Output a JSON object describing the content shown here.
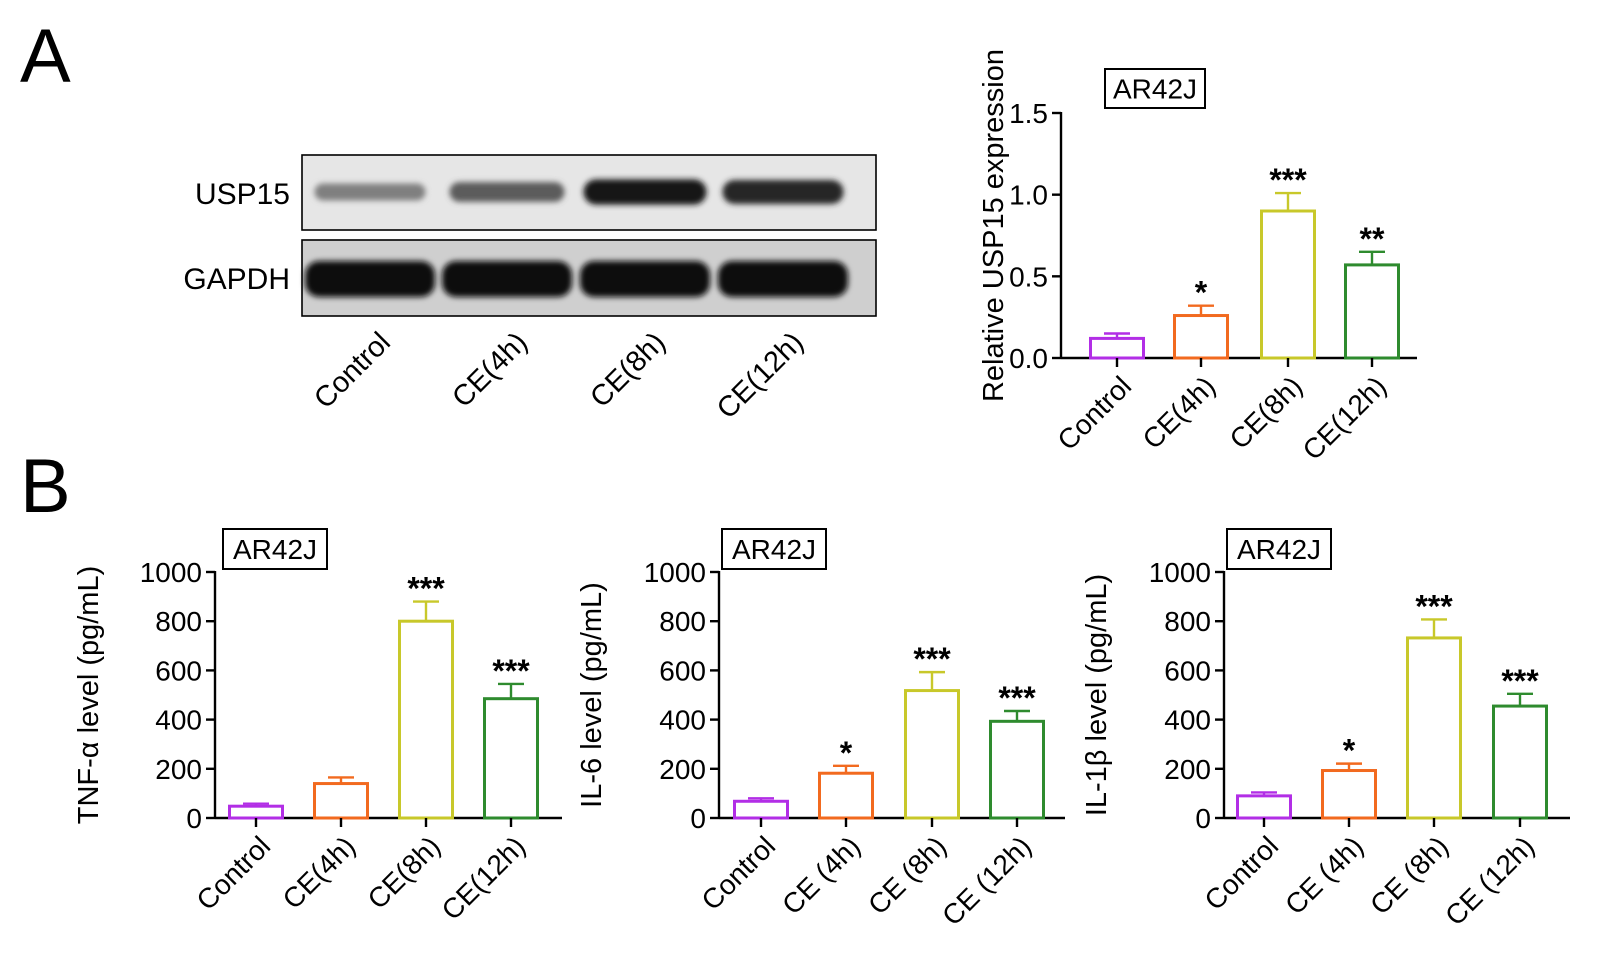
{
  "panels": {
    "a_label": "A",
    "b_label": "B"
  },
  "blot": {
    "proteins": [
      "USP15",
      "GAPDH"
    ],
    "lanes": [
      "Control",
      "CE(4h)",
      "CE(8h)",
      "CE(12h)"
    ],
    "usp15_intensity": [
      0.35,
      0.55,
      0.95,
      0.85
    ],
    "gapdh_intensity": [
      1.0,
      1.0,
      1.0,
      1.0
    ]
  },
  "chart_data": [
    {
      "id": "usp15",
      "type": "bar",
      "cell_label": "AR42J",
      "ylabel": "Relative USP15 expression",
      "categories": [
        "Control",
        "CE(4h)",
        "CE(8h)",
        "CE(12h)"
      ],
      "values": [
        0.12,
        0.26,
        0.9,
        0.57
      ],
      "errors": [
        0.03,
        0.06,
        0.11,
        0.08
      ],
      "significance": [
        "",
        "*",
        "***",
        "**"
      ],
      "ylim": [
        0,
        1.5
      ],
      "yticks": [
        "0.0",
        "0.5",
        "1.0",
        "1.5"
      ],
      "ytick_values": [
        0,
        0.5,
        1.0,
        1.5
      ],
      "bar_colors": [
        "#b22ee6",
        "#f26a1f",
        "#c8c82a",
        "#2e8b2e"
      ]
    },
    {
      "id": "tnf",
      "type": "bar",
      "cell_label": "AR42J",
      "ylabel": "TNF-α level (pg/mL)",
      "categories": [
        "Control",
        "CE(4h)",
        "CE(8h)",
        "CE(12h)"
      ],
      "values": [
        48,
        140,
        800,
        485
      ],
      "errors": [
        10,
        25,
        80,
        60
      ],
      "significance": [
        "",
        "",
        "***",
        "***"
      ],
      "ylim": [
        0,
        1000
      ],
      "yticks": [
        "0",
        "200",
        "400",
        "600",
        "800",
        "1000"
      ],
      "ytick_values": [
        0,
        200,
        400,
        600,
        800,
        1000
      ],
      "bar_colors": [
        "#b22ee6",
        "#f26a1f",
        "#c8c82a",
        "#2e8b2e"
      ]
    },
    {
      "id": "il6",
      "type": "bar",
      "cell_label": "AR42J",
      "ylabel": "IL-6 level (pg/mL)",
      "categories": [
        "Control",
        "CE (4h)",
        "CE (8h)",
        "CE (12h)"
      ],
      "values": [
        68,
        182,
        518,
        393
      ],
      "errors": [
        12,
        30,
        75,
        42
      ],
      "significance": [
        "",
        "*",
        "***",
        "***"
      ],
      "ylim": [
        0,
        1000
      ],
      "yticks": [
        "0",
        "200",
        "400",
        "600",
        "800",
        "1000"
      ],
      "ytick_values": [
        0,
        200,
        400,
        600,
        800,
        1000
      ],
      "bar_colors": [
        "#b22ee6",
        "#f26a1f",
        "#c8c82a",
        "#2e8b2e"
      ]
    },
    {
      "id": "il1b",
      "type": "bar",
      "cell_label": "AR42J",
      "ylabel": "IL-1β level (pg/mL)",
      "categories": [
        "Control",
        "CE (4h)",
        "CE (8h)",
        "CE (12h)"
      ],
      "values": [
        90,
        193,
        732,
        455
      ],
      "errors": [
        14,
        28,
        75,
        50
      ],
      "significance": [
        "",
        "*",
        "***",
        "***"
      ],
      "ylim": [
        0,
        1000
      ],
      "yticks": [
        "0",
        "200",
        "400",
        "600",
        "800",
        "1000"
      ],
      "ytick_values": [
        0,
        200,
        400,
        600,
        800,
        1000
      ],
      "bar_colors": [
        "#b22ee6",
        "#f26a1f",
        "#c8c82a",
        "#2e8b2e"
      ]
    }
  ]
}
